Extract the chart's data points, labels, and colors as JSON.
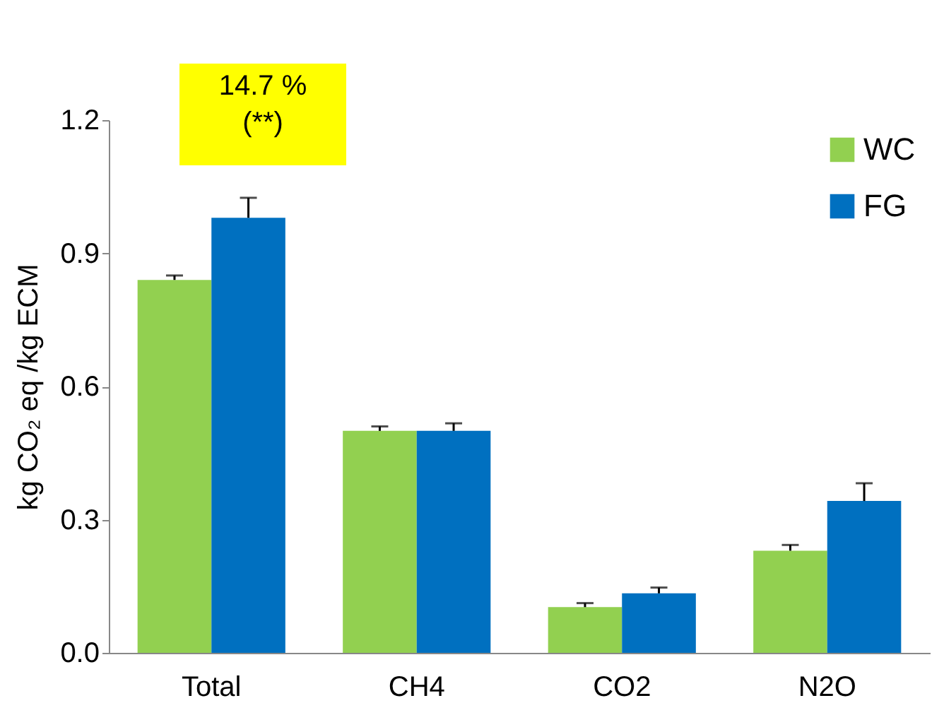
{
  "chart_data": {
    "type": "bar",
    "ylabel": "kg CO₂ eq /kg ECM",
    "categories": [
      "Total",
      "CH4",
      "CO2",
      "N2O"
    ],
    "series": [
      {
        "name": "WC",
        "color": "#92d050",
        "values": [
          0.84,
          0.5,
          0.103,
          0.23
        ],
        "errors": [
          [
            0.84,
            0.85
          ],
          [
            0.5,
            0.51
          ],
          [
            0.103,
            0.112
          ],
          [
            0.23,
            0.243
          ]
        ]
      },
      {
        "name": "FG",
        "color": "#0070c0",
        "values": [
          0.98,
          0.5,
          0.134,
          0.342
        ],
        "errors": [
          [
            0.98,
            1.025
          ],
          [
            0.5,
            0.517
          ],
          [
            0.134,
            0.147
          ],
          [
            0.342,
            0.382
          ]
        ]
      }
    ],
    "ylim": [
      0,
      1.2
    ],
    "yticks": [
      {
        "value": 0,
        "label": "0.0"
      },
      0.3,
      0.6,
      0.9,
      1.2
    ],
    "annotations": [
      "14.7 %\n(**)"
    ],
    "grid": false,
    "legend": "top right"
  }
}
